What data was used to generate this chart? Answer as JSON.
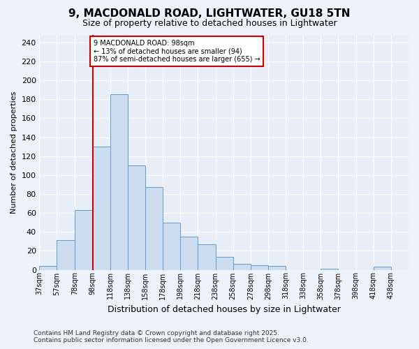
{
  "title": "9, MACDONALD ROAD, LIGHTWATER, GU18 5TN",
  "subtitle": "Size of property relative to detached houses in Lightwater",
  "xlabel": "Distribution of detached houses by size in Lightwater",
  "ylabel": "Number of detached properties",
  "bar_color": "#ccddf0",
  "bar_edge_color": "#6699cc",
  "background_color": "#e8eef8",
  "grid_color": "#ffffff",
  "bin_edges": [
    37,
    57,
    78,
    98,
    118,
    138,
    158,
    178,
    198,
    218,
    238,
    258,
    278,
    298,
    318,
    338,
    358,
    378,
    398,
    418,
    438,
    458
  ],
  "bin_labels": [
    "37sqm",
    "57sqm",
    "78sqm",
    "98sqm",
    "118sqm",
    "138sqm",
    "158sqm",
    "178sqm",
    "198sqm",
    "218sqm",
    "238sqm",
    "258sqm",
    "278sqm",
    "298sqm",
    "318sqm",
    "338sqm",
    "358sqm",
    "378sqm",
    "398sqm",
    "418sqm",
    "438sqm"
  ],
  "counts": [
    4,
    31,
    63,
    130,
    185,
    110,
    87,
    50,
    35,
    27,
    14,
    6,
    5,
    4,
    0,
    0,
    1,
    0,
    0,
    3,
    0
  ],
  "vline_x": 98,
  "vline_color": "#cc0000",
  "annotation_text": "9 MACDONALD ROAD: 98sqm\n← 13% of detached houses are smaller (94)\n87% of semi-detached houses are larger (655) →",
  "annotation_box_color": "#ffffff",
  "annotation_box_edge": "#cc0000",
  "ylim": [
    0,
    248
  ],
  "yticks": [
    0,
    20,
    40,
    60,
    80,
    100,
    120,
    140,
    160,
    180,
    200,
    220,
    240
  ],
  "footer1": "Contains HM Land Registry data © Crown copyright and database right 2025.",
  "footer2": "Contains public sector information licensed under the Open Government Licence v3.0."
}
